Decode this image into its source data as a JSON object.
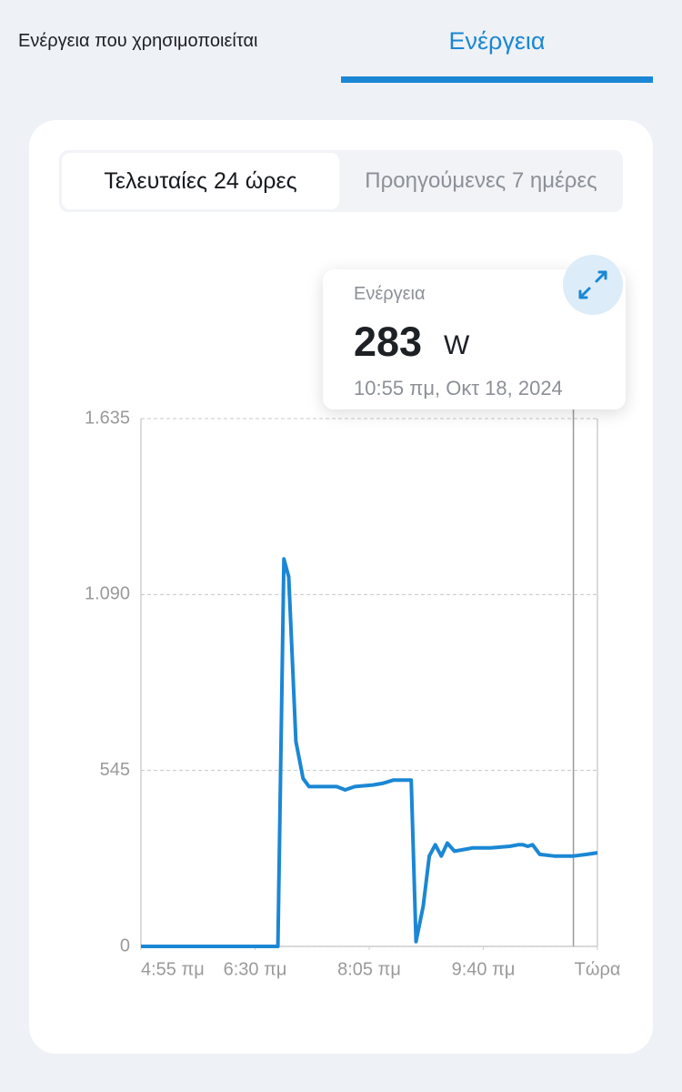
{
  "tabs": {
    "items": [
      "Ενέργεια που χρησιμοποιείται",
      "Ενέργεια"
    ],
    "active": 1
  },
  "segments": {
    "items": [
      "Τελευταίες 24 ώρες",
      "Προηγούμενες 7 ημέρες"
    ],
    "active": 0
  },
  "tooltip": {
    "label": "Ενέργεια",
    "value": 283,
    "unit": "W",
    "time": "10:55 πμ, Οκτ 18, 2024"
  },
  "chart_data": {
    "type": "line",
    "color": "#1b87d4",
    "grid": true,
    "x": [
      0,
      114,
      119,
      123,
      129,
      135,
      140,
      151,
      163,
      170,
      178,
      193,
      201,
      210,
      220,
      225,
      229,
      235,
      240,
      245,
      250,
      255,
      261,
      276,
      291,
      307,
      314,
      318,
      322,
      326,
      332,
      344,
      360,
      371,
      380
    ],
    "values": [
      0,
      0,
      1200,
      1145,
      635,
      520,
      495,
      495,
      495,
      485,
      495,
      500,
      505,
      515,
      515,
      515,
      15,
      125,
      280,
      315,
      280,
      320,
      295,
      305,
      305,
      310,
      315,
      315,
      310,
      315,
      285,
      280,
      280,
      285,
      290
    ],
    "xlim": [
      0,
      380
    ],
    "xticks": [
      {
        "value": 0,
        "label": "4:55 πμ"
      },
      {
        "value": 95,
        "label": "6:30 πμ"
      },
      {
        "value": 190,
        "label": "8:05 πμ"
      },
      {
        "value": 285,
        "label": "9:40 πμ"
      },
      {
        "value": 380,
        "label": "Τώρα"
      }
    ],
    "ylim": [
      0,
      1635
    ],
    "yticks": [
      0,
      545,
      {
        "value": 1090,
        "label": "1.090"
      },
      {
        "value": 1635,
        "label": "1.635"
      }
    ],
    "cursor_x": 360
  }
}
